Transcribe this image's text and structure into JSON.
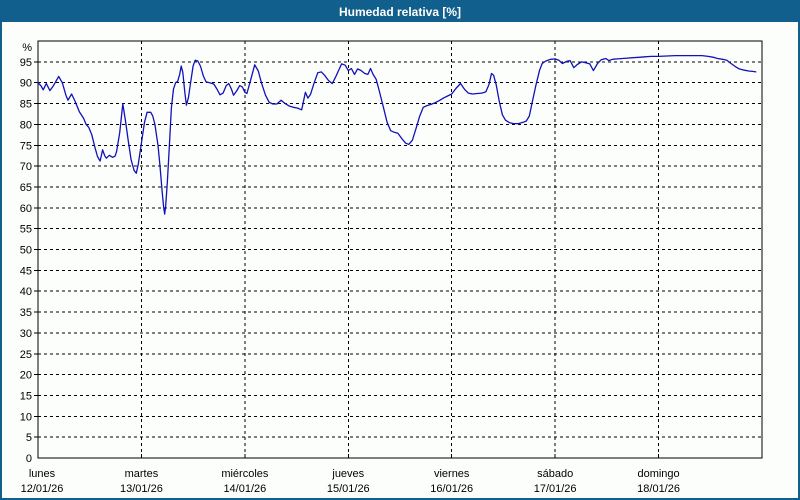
{
  "window": {
    "title": "Humedad relativa [%]"
  },
  "colors": {
    "titlebar_bg": "#105f8d",
    "titlebar_text": "#ffffff",
    "frame": "#105f8d",
    "plot_bg": "#fcfefc",
    "grid": "#000000",
    "axis": "#000000",
    "label": "#000000",
    "line": "#1212b8"
  },
  "chart_data": {
    "type": "line",
    "title": "Humedad relativa [%]",
    "y_unit_label": "%",
    "ylim": [
      0,
      100
    ],
    "ytick_step": 5,
    "yticks": [
      0,
      5,
      10,
      15,
      20,
      25,
      30,
      35,
      40,
      45,
      50,
      55,
      60,
      65,
      70,
      75,
      80,
      85,
      90,
      95
    ],
    "x_range_days": 7,
    "x_days": [
      {
        "name": "lunes",
        "date": "12/01/26"
      },
      {
        "name": "martes",
        "date": "13/01/26"
      },
      {
        "name": "miércoles",
        "date": "14/01/26"
      },
      {
        "name": "jueves",
        "date": "15/01/26"
      },
      {
        "name": "viernes",
        "date": "16/01/26"
      },
      {
        "name": "sábado",
        "date": "17/01/26"
      },
      {
        "name": "domingo",
        "date": "18/01/26"
      }
    ],
    "grid": {
      "style": "dashed",
      "color": "#000000",
      "horizontal_every_pct": 5,
      "vertical_every": "day"
    },
    "legend": "none",
    "series": [
      {
        "name": "Humedad relativa",
        "color": "#1212b8",
        "points": [
          [
            0.0,
            90.0
          ],
          [
            0.03,
            89.2
          ],
          [
            0.05,
            88.3
          ],
          [
            0.08,
            89.8
          ],
          [
            0.115,
            88.1
          ],
          [
            0.15,
            89.3
          ],
          [
            0.2,
            91.5
          ],
          [
            0.235,
            90.0
          ],
          [
            0.27,
            87.0
          ],
          [
            0.29,
            85.8
          ],
          [
            0.325,
            87.3
          ],
          [
            0.36,
            85.5
          ],
          [
            0.4,
            83.0
          ],
          [
            0.44,
            81.5
          ],
          [
            0.465,
            80.0
          ],
          [
            0.49,
            79.3
          ],
          [
            0.52,
            77.5
          ],
          [
            0.55,
            74.5
          ],
          [
            0.575,
            72.3
          ],
          [
            0.6,
            71.2
          ],
          [
            0.625,
            73.9
          ],
          [
            0.645,
            72.5
          ],
          [
            0.66,
            71.9
          ],
          [
            0.69,
            72.6
          ],
          [
            0.72,
            72.1
          ],
          [
            0.745,
            72.4
          ],
          [
            0.76,
            73.5
          ],
          [
            0.79,
            78.0
          ],
          [
            0.82,
            84.9
          ],
          [
            0.845,
            81.0
          ],
          [
            0.87,
            76.5
          ],
          [
            0.9,
            71.5
          ],
          [
            0.93,
            68.9
          ],
          [
            0.95,
            68.3
          ],
          [
            0.97,
            70.5
          ],
          [
            1.0,
            75.5
          ],
          [
            1.03,
            80.5
          ],
          [
            1.055,
            82.9
          ],
          [
            1.09,
            82.9
          ],
          [
            1.11,
            82.0
          ],
          [
            1.13,
            80.0
          ],
          [
            1.16,
            75.0
          ],
          [
            1.18,
            70.0
          ],
          [
            1.2,
            64.0
          ],
          [
            1.215,
            60.0
          ],
          [
            1.225,
            58.5
          ],
          [
            1.235,
            60.5
          ],
          [
            1.25,
            66.0
          ],
          [
            1.27,
            75.0
          ],
          [
            1.29,
            84.0
          ],
          [
            1.31,
            88.5
          ],
          [
            1.33,
            90.0
          ],
          [
            1.35,
            90.3
          ],
          [
            1.37,
            92.0
          ],
          [
            1.385,
            94.0
          ],
          [
            1.4,
            92.5
          ],
          [
            1.42,
            87.5
          ],
          [
            1.435,
            84.6
          ],
          [
            1.455,
            86.5
          ],
          [
            1.475,
            90.0
          ],
          [
            1.5,
            94.0
          ],
          [
            1.52,
            95.4
          ],
          [
            1.545,
            95.2
          ],
          [
            1.57,
            94.0
          ],
          [
            1.6,
            91.5
          ],
          [
            1.625,
            90.2
          ],
          [
            1.66,
            90.0
          ],
          [
            1.7,
            89.7
          ],
          [
            1.73,
            88.5
          ],
          [
            1.76,
            87.1
          ],
          [
            1.79,
            87.5
          ],
          [
            1.82,
            89.3
          ],
          [
            1.845,
            89.8
          ],
          [
            1.87,
            88.5
          ],
          [
            1.89,
            87.0
          ],
          [
            1.92,
            88.0
          ],
          [
            1.95,
            89.3
          ],
          [
            1.975,
            89.0
          ],
          [
            2.0,
            87.7
          ],
          [
            2.02,
            87.4
          ],
          [
            2.055,
            90.5
          ],
          [
            2.095,
            94.3
          ],
          [
            2.13,
            92.8
          ],
          [
            2.16,
            90.0
          ],
          [
            2.2,
            87.0
          ],
          [
            2.235,
            85.3
          ],
          [
            2.27,
            84.9
          ],
          [
            2.31,
            84.9
          ],
          [
            2.35,
            85.8
          ],
          [
            2.39,
            85.0
          ],
          [
            2.43,
            84.4
          ],
          [
            2.47,
            84.1
          ],
          [
            2.51,
            83.9
          ],
          [
            2.55,
            83.5
          ],
          [
            2.585,
            87.7
          ],
          [
            2.61,
            86.3
          ],
          [
            2.635,
            87.2
          ],
          [
            2.67,
            90.0
          ],
          [
            2.705,
            92.4
          ],
          [
            2.74,
            92.6
          ],
          [
            2.77,
            91.8
          ],
          [
            2.81,
            90.5
          ],
          [
            2.845,
            89.8
          ],
          [
            2.88,
            91.5
          ],
          [
            2.935,
            94.5
          ],
          [
            2.97,
            94.2
          ],
          [
            3.0,
            92.9
          ],
          [
            3.03,
            93.4
          ],
          [
            3.06,
            92.0
          ],
          [
            3.09,
            93.3
          ],
          [
            3.125,
            92.9
          ],
          [
            3.16,
            92.2
          ],
          [
            3.19,
            92.0
          ],
          [
            3.215,
            93.4
          ],
          [
            3.24,
            92.0
          ],
          [
            3.27,
            90.8
          ],
          [
            3.3,
            88.0
          ],
          [
            3.34,
            84.0
          ],
          [
            3.375,
            80.5
          ],
          [
            3.41,
            78.5
          ],
          [
            3.445,
            78.1
          ],
          [
            3.48,
            77.9
          ],
          [
            3.52,
            76.5
          ],
          [
            3.555,
            75.5
          ],
          [
            3.585,
            75.2
          ],
          [
            3.62,
            76.2
          ],
          [
            3.655,
            79.0
          ],
          [
            3.69,
            82.0
          ],
          [
            3.725,
            84.1
          ],
          [
            3.76,
            84.5
          ],
          [
            3.8,
            84.8
          ],
          [
            3.84,
            85.2
          ],
          [
            3.88,
            85.7
          ],
          [
            3.92,
            86.3
          ],
          [
            3.96,
            86.8
          ],
          [
            4.0,
            87.3
          ],
          [
            4.04,
            88.6
          ],
          [
            4.085,
            89.8
          ],
          [
            4.125,
            88.4
          ],
          [
            4.16,
            87.5
          ],
          [
            4.2,
            87.3
          ],
          [
            4.25,
            87.4
          ],
          [
            4.29,
            87.5
          ],
          [
            4.33,
            87.8
          ],
          [
            4.36,
            89.5
          ],
          [
            4.385,
            92.2
          ],
          [
            4.405,
            91.8
          ],
          [
            4.43,
            89.5
          ],
          [
            4.46,
            85.5
          ],
          [
            4.49,
            82.3
          ],
          [
            4.52,
            81.0
          ],
          [
            4.56,
            80.4
          ],
          [
            4.6,
            80.2
          ],
          [
            4.645,
            80.2
          ],
          [
            4.69,
            80.5
          ],
          [
            4.72,
            80.8
          ],
          [
            4.75,
            82.0
          ],
          [
            4.78,
            85.5
          ],
          [
            4.815,
            89.5
          ],
          [
            4.85,
            93.0
          ],
          [
            4.875,
            94.6
          ],
          [
            4.91,
            95.2
          ],
          [
            4.955,
            95.6
          ],
          [
            5.0,
            95.7
          ],
          [
            5.035,
            95.4
          ],
          [
            5.07,
            94.6
          ],
          [
            5.11,
            95.1
          ],
          [
            5.145,
            95.3
          ],
          [
            5.18,
            93.6
          ],
          [
            5.215,
            94.4
          ],
          [
            5.255,
            95.0
          ],
          [
            5.295,
            94.8
          ],
          [
            5.335,
            94.5
          ],
          [
            5.37,
            92.9
          ],
          [
            5.41,
            94.6
          ],
          [
            5.445,
            95.5
          ],
          [
            5.49,
            95.8
          ],
          [
            5.52,
            95.3
          ],
          [
            5.555,
            95.6
          ],
          [
            5.6,
            95.7
          ],
          [
            5.65,
            95.8
          ],
          [
            5.7,
            95.9
          ],
          [
            5.75,
            96.0
          ],
          [
            5.81,
            96.1
          ],
          [
            5.87,
            96.2
          ],
          [
            5.93,
            96.3
          ],
          [
            6.0,
            96.3
          ],
          [
            6.08,
            96.4
          ],
          [
            6.16,
            96.5
          ],
          [
            6.25,
            96.5
          ],
          [
            6.34,
            96.5
          ],
          [
            6.42,
            96.5
          ],
          [
            6.48,
            96.3
          ],
          [
            6.53,
            96.1
          ],
          [
            6.57,
            95.8
          ],
          [
            6.62,
            95.6
          ],
          [
            6.66,
            95.4
          ],
          [
            6.7,
            94.6
          ],
          [
            6.74,
            93.9
          ],
          [
            6.78,
            93.3
          ],
          [
            6.83,
            93.0
          ],
          [
            6.87,
            92.8
          ],
          [
            6.91,
            92.7
          ],
          [
            6.94,
            92.6
          ]
        ]
      }
    ]
  }
}
